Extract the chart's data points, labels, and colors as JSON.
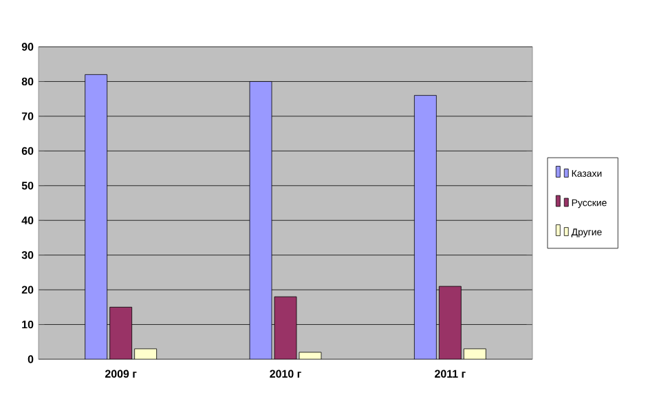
{
  "chart_data": {
    "type": "bar",
    "categories": [
      "2009 г",
      "2010 г",
      "2011 г"
    ],
    "series": [
      {
        "name": "Казахи",
        "color": "#9999ff",
        "values": [
          82,
          80,
          76
        ]
      },
      {
        "name": "Русские",
        "color": "#993366",
        "values": [
          15,
          18,
          21
        ]
      },
      {
        "name": "Другие",
        "color": "#ffffcc",
        "values": [
          3,
          2,
          3
        ]
      }
    ],
    "ylim": [
      0,
      90
    ],
    "yticks": [
      0,
      10,
      20,
      30,
      40,
      50,
      60,
      70,
      80,
      90
    ],
    "grid": "y",
    "legend": "right"
  }
}
